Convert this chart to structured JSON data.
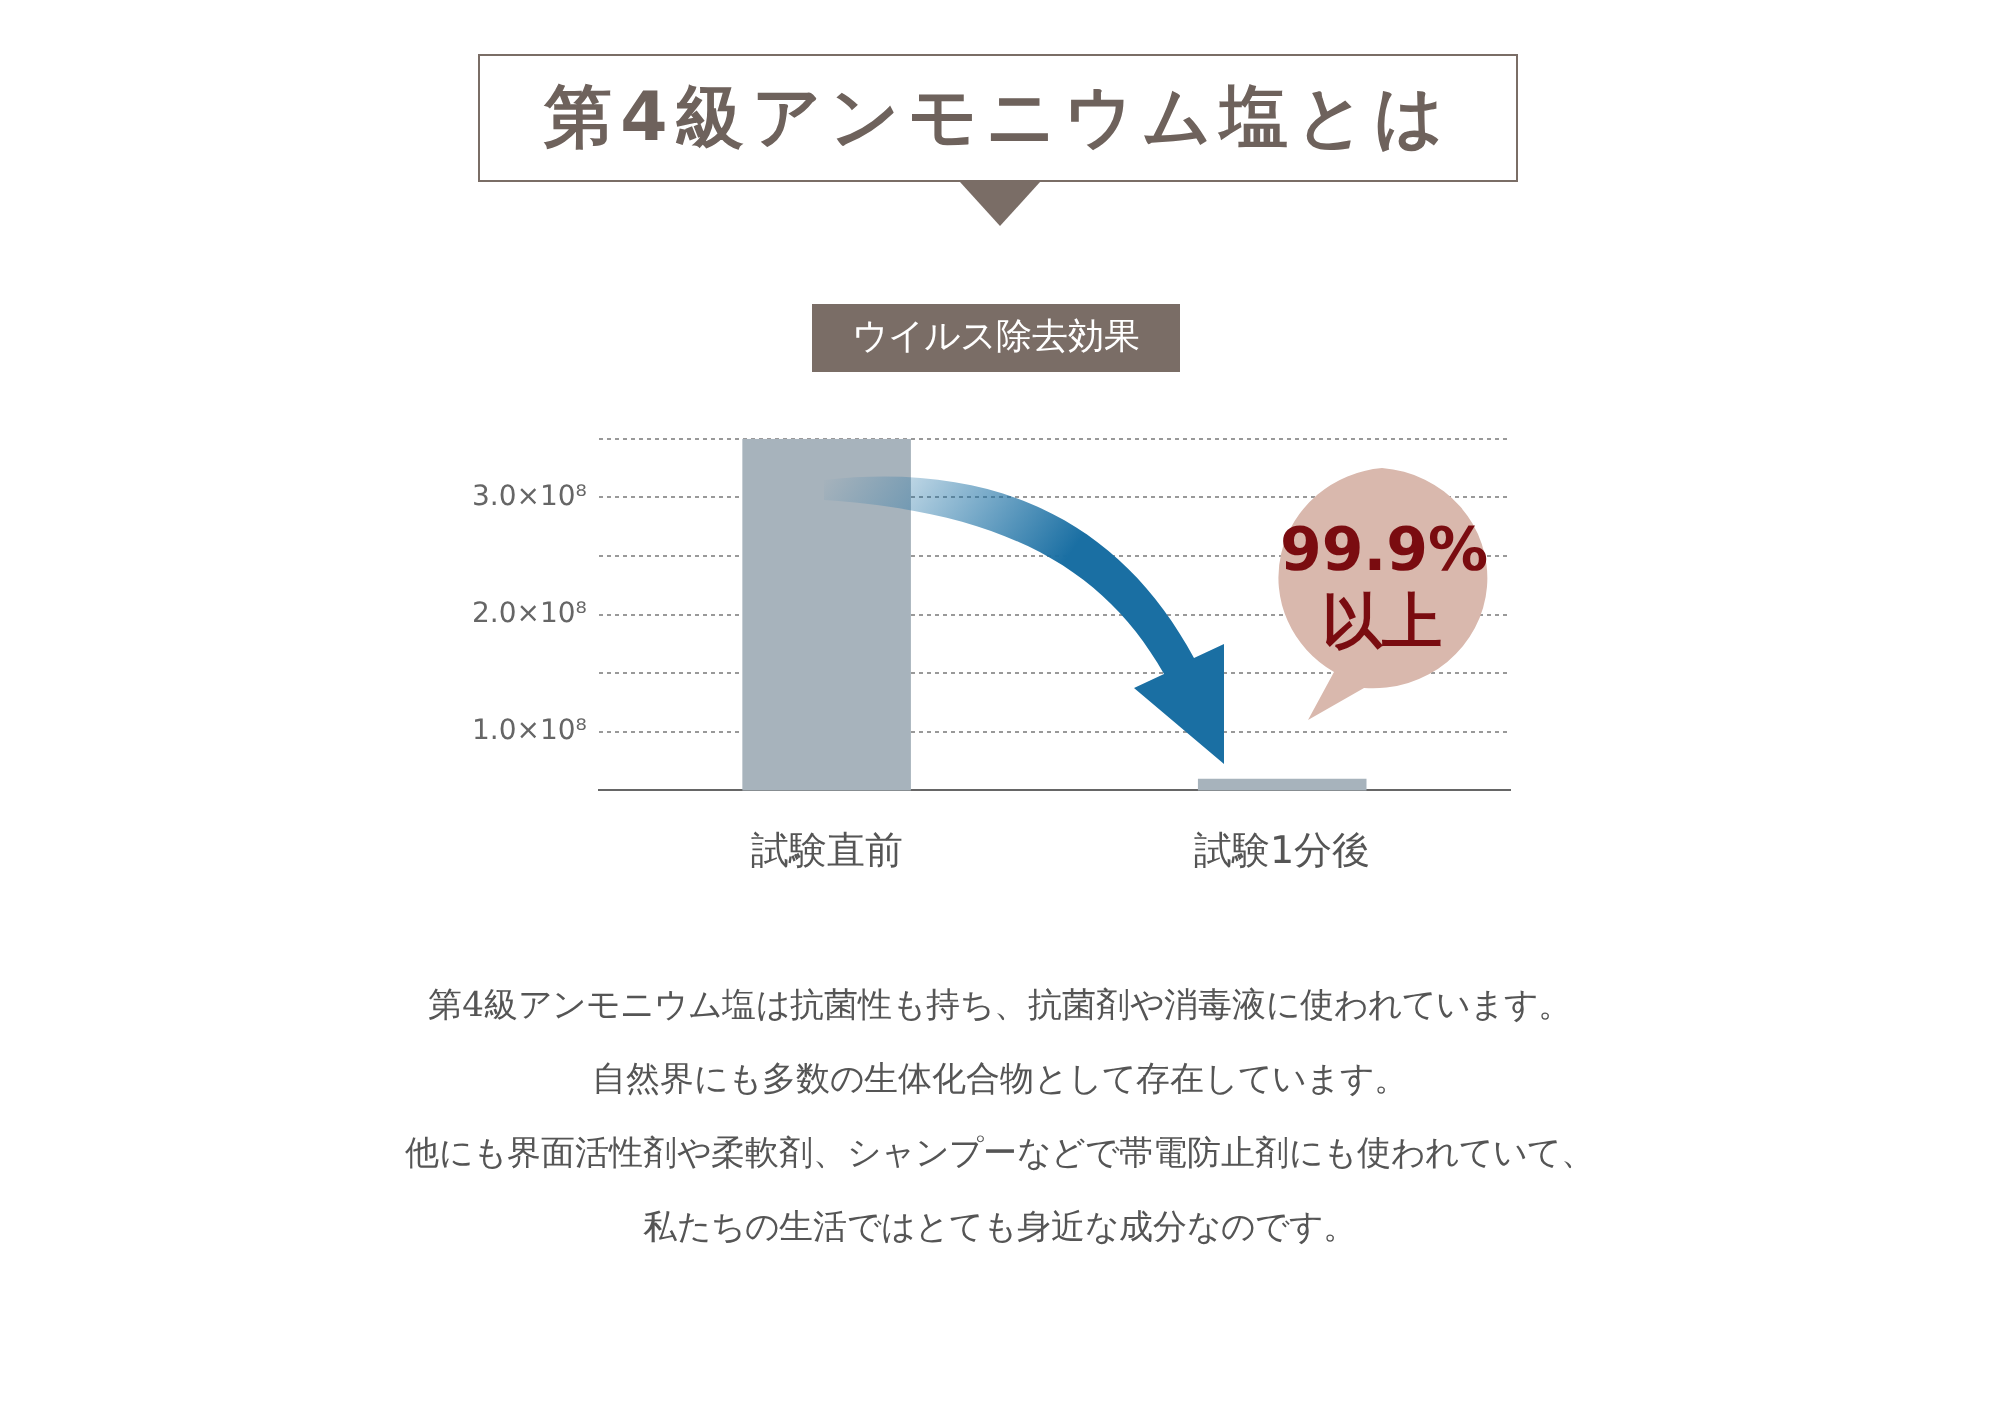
{
  "chart_data": {
    "type": "bar",
    "title": "第4級アンモニウム塩とは",
    "subtitle": "ウイルス除去効果",
    "categories": [
      "試験直前",
      "試験1分後"
    ],
    "values": [
      350000000,
      60000000
    ],
    "color": "#a7b3bc",
    "ylim": [
      50000000,
      350000000
    ],
    "yticks": [
      {
        "value": 100000000,
        "label": "1.0×10⁸"
      },
      {
        "value": 150000000,
        "label": null
      },
      {
        "value": 200000000,
        "label": "2.0×10⁸"
      },
      {
        "value": 250000000,
        "label": null
      },
      {
        "value": 300000000,
        "label": "3.0×10⁸"
      },
      {
        "value": 350000000,
        "label": null
      }
    ],
    "grid": "y",
    "legend": false,
    "annotations": [
      "99.9%以上",
      "第4級アンモニウム塩は抗菌性も持ち、抗菌剤や消毒液に使われています。",
      "自然界にも多数の生体化合物として存在しています。",
      "他にも界面活性剤や柔軟剤、シャンプーなどで帯電防止剤にも使われていて、",
      "私たちの生活ではとても身近な成分なのです。"
    ]
  }
}
